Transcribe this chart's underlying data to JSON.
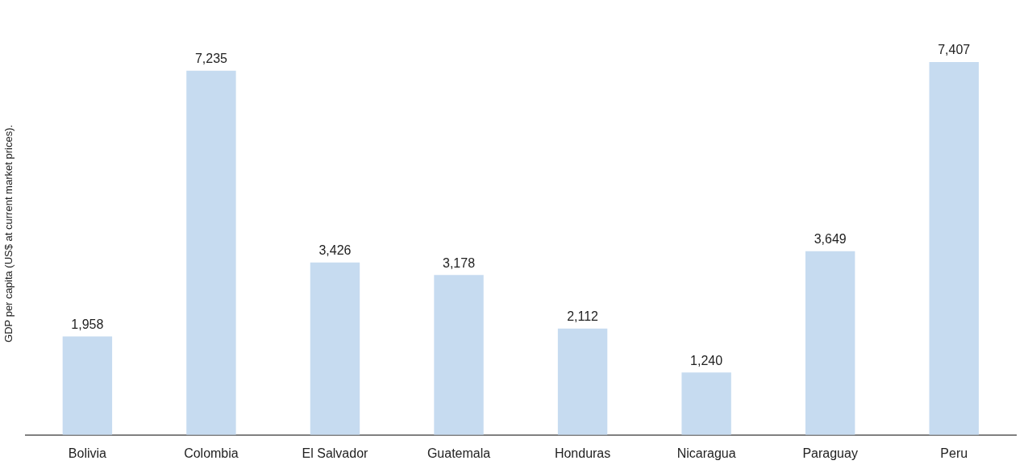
{
  "chart_data": {
    "type": "bar",
    "ylabel": "GDP per capita (US$ at current market prices).",
    "categories": [
      "Bolivia",
      "Colombia",
      "El Salvador",
      "Guatemala",
      "Honduras",
      "Nicaragua",
      "Paraguay",
      "Peru"
    ],
    "values": [
      1958,
      7235,
      3426,
      3178,
      2112,
      1240,
      3649,
      7407
    ],
    "value_labels": [
      "1,958",
      "7,235",
      "3,426",
      "3,178",
      "2,112",
      "1,240",
      "3,649",
      "7,407"
    ],
    "color": "#c6dbf0",
    "grid": false,
    "legend": false
  }
}
